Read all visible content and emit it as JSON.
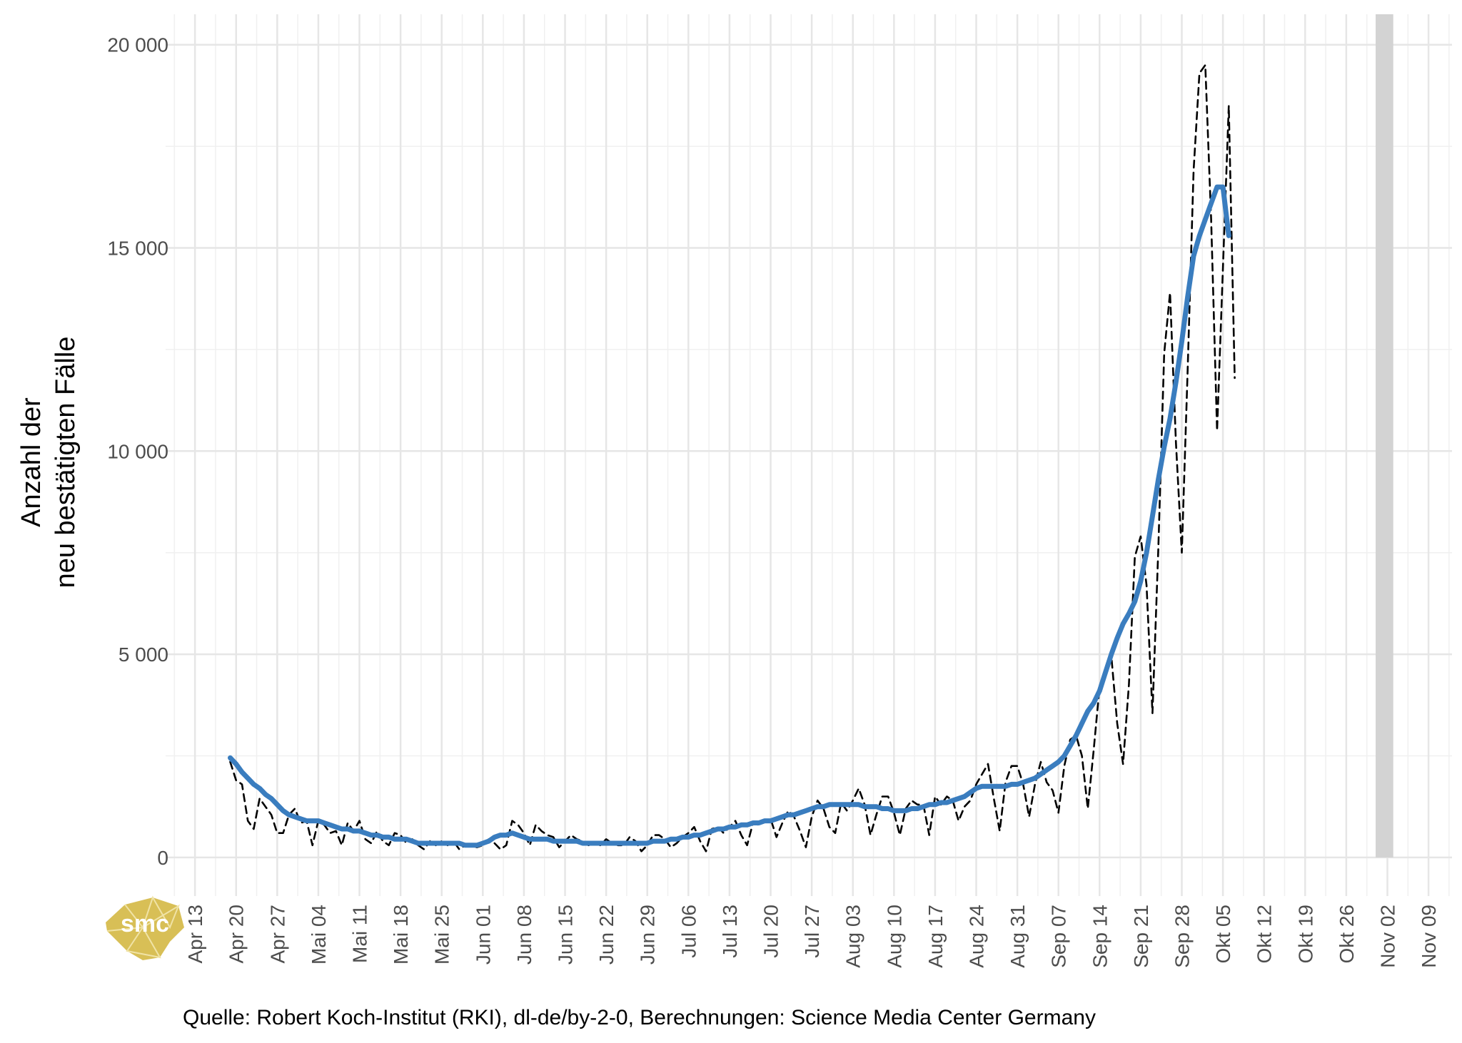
{
  "chart_data": {
    "type": "line",
    "ylabel_line1": "Anzahl der",
    "ylabel_line2": "neu bestätigten Fälle",
    "caption": "Quelle: Robert Koch-Institut (RKI), dl-de/by-2-0, Berechnungen: Science Media Center Germany",
    "logo_text": "smc",
    "ylim": [
      -950,
      20750
    ],
    "yticks": [
      0,
      5000,
      10000,
      15000,
      20000
    ],
    "ytick_labels": [
      "0",
      "5 000",
      "10 000",
      "15 000",
      "20 000"
    ],
    "xlim": [
      "2020-04-08",
      "2020-11-13"
    ],
    "xtick_dates": [
      "2020-04-13",
      "2020-04-20",
      "2020-04-27",
      "2020-05-04",
      "2020-05-11",
      "2020-05-18",
      "2020-05-25",
      "2020-06-01",
      "2020-06-08",
      "2020-06-15",
      "2020-06-22",
      "2020-06-29",
      "2020-07-06",
      "2020-07-13",
      "2020-07-20",
      "2020-07-27",
      "2020-08-03",
      "2020-08-10",
      "2020-08-17",
      "2020-08-24",
      "2020-08-31",
      "2020-09-07",
      "2020-09-14",
      "2020-09-21",
      "2020-09-28",
      "2020-10-05",
      "2020-10-12",
      "2020-10-19",
      "2020-10-26",
      "2020-11-02",
      "2020-11-09"
    ],
    "xtick_labels": [
      "Apr 13",
      "Apr 20",
      "Apr 27",
      "Mai 04",
      "Mai 11",
      "Mai 18",
      "Mai 25",
      "Jun 01",
      "Jun 08",
      "Jun 15",
      "Jun 22",
      "Jun 29",
      "Jul 06",
      "Jul 13",
      "Jul 20",
      "Jul 27",
      "Aug 03",
      "Aug 10",
      "Aug 17",
      "Aug 24",
      "Aug 31",
      "Sep 07",
      "Sep 14",
      "Sep 21",
      "Sep 28",
      "Okt 05",
      "Okt 12",
      "Okt 19",
      "Okt 26",
      "Nov 02",
      "Nov 09"
    ],
    "grid": true,
    "highlight": {
      "start": "2020-10-31",
      "end": "2020-11-03",
      "color": "#d3d3d3"
    },
    "series": [
      {
        "style": "dashed",
        "color": "#000000",
        "x_start": "2020-04-19",
        "values": [
          2350,
          1900,
          1800,
          900,
          700,
          1450,
          1250,
          1050,
          600,
          600,
          1050,
          1200,
          850,
          900,
          300,
          900,
          800,
          600,
          650,
          300,
          850,
          650,
          900,
          450,
          350,
          650,
          400,
          300,
          600,
          550,
          350,
          450,
          300,
          200,
          400,
          300,
          400,
          300,
          400,
          200,
          300,
          300,
          250,
          300,
          450,
          350,
          200,
          300,
          900,
          800,
          600,
          300,
          800,
          650,
          550,
          500,
          250,
          400,
          550,
          450,
          400,
          300,
          350,
          300,
          450,
          350,
          300,
          300,
          500,
          400,
          150,
          300,
          550,
          550,
          450,
          250,
          350,
          500,
          600,
          750,
          400,
          150,
          700,
          750,
          600,
          750,
          900,
          550,
          300,
          850,
          800,
          900,
          950,
          500,
          850,
          1150,
          1000,
          650,
          250,
          1000,
          1400,
          1200,
          750,
          600,
          1350,
          1150,
          1400,
          1700,
          1300,
          550,
          1050,
          1500,
          1500,
          1100,
          550,
          1200,
          1400,
          1300,
          1300,
          550,
          1500,
          1300,
          1500,
          1400,
          900,
          1250,
          1400,
          1800,
          2050,
          2300,
          1450,
          650,
          1850,
          2250,
          2250,
          1800,
          1000,
          1800,
          2350,
          1850,
          1650,
          1100,
          2250,
          2900,
          3000,
          2500,
          1200,
          2650,
          4200,
          4550,
          4950,
          3300,
          2300,
          4250,
          7400,
          7900,
          6700,
          3550,
          7600,
          12400,
          13900,
          10200,
          7500,
          12000,
          16900,
          19300,
          19500,
          15700,
          10500,
          14500,
          18500,
          11800
        ]
      },
      {
        "style": "solid",
        "color": "#3a7dbf",
        "x_start": "2020-04-19",
        "values": [
          2450,
          2300,
          2100,
          1950,
          1800,
          1700,
          1550,
          1450,
          1300,
          1150,
          1050,
          1000,
          950,
          900,
          900,
          900,
          850,
          800,
          750,
          700,
          700,
          650,
          650,
          600,
          550,
          550,
          500,
          500,
          450,
          450,
          450,
          400,
          350,
          350,
          350,
          350,
          350,
          350,
          350,
          350,
          300,
          300,
          300,
          350,
          400,
          500,
          550,
          550,
          600,
          550,
          500,
          450,
          450,
          450,
          450,
          400,
          400,
          400,
          400,
          400,
          350,
          350,
          350,
          350,
          350,
          350,
          350,
          350,
          350,
          350,
          350,
          350,
          400,
          400,
          400,
          450,
          450,
          500,
          500,
          550,
          550,
          600,
          650,
          700,
          700,
          750,
          750,
          800,
          800,
          850,
          850,
          900,
          900,
          950,
          1000,
          1050,
          1050,
          1100,
          1150,
          1200,
          1250,
          1250,
          1300,
          1300,
          1300,
          1300,
          1300,
          1300,
          1250,
          1250,
          1250,
          1200,
          1200,
          1150,
          1150,
          1150,
          1200,
          1200,
          1250,
          1300,
          1300,
          1350,
          1350,
          1400,
          1450,
          1500,
          1600,
          1700,
          1750,
          1750,
          1750,
          1750,
          1750,
          1800,
          1800,
          1850,
          1900,
          1950,
          2050,
          2150,
          2250,
          2350,
          2500,
          2750,
          3000,
          3300,
          3600,
          3800,
          4100,
          4550,
          5000,
          5400,
          5750,
          6000,
          6300,
          6800,
          7500,
          8400,
          9300,
          10100,
          10800,
          11700,
          12700,
          13800,
          14800,
          15300,
          15700,
          16100,
          16500,
          16500,
          15300
        ]
      }
    ]
  }
}
